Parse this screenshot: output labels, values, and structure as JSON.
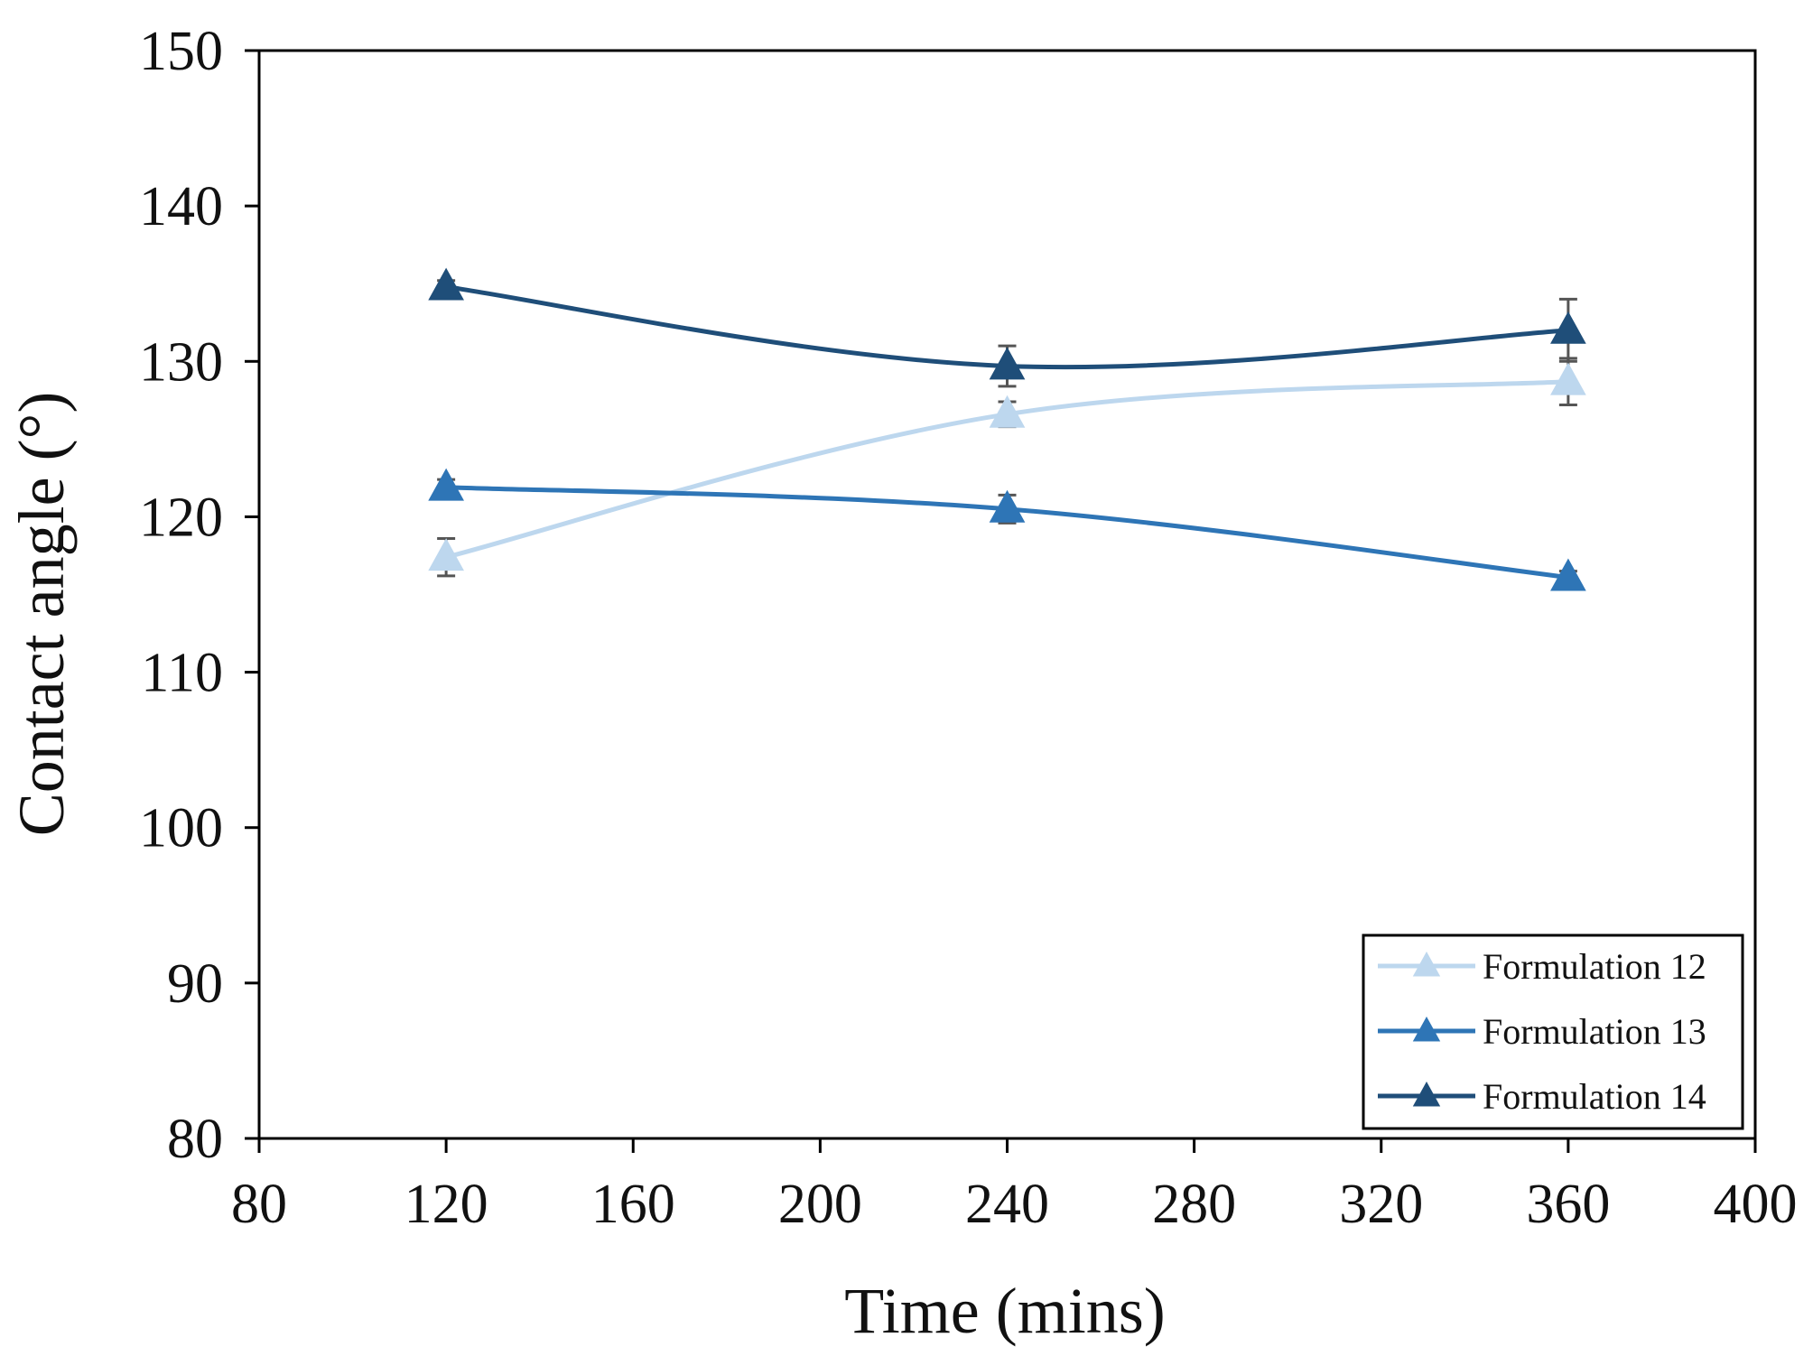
{
  "chart_data": {
    "type": "line",
    "title": "",
    "xlabel": "Time (mins)",
    "ylabel": "Contact angle (°)",
    "xlim": [
      80,
      400
    ],
    "ylim": [
      80,
      150
    ],
    "xticks": [
      80,
      120,
      160,
      200,
      240,
      280,
      320,
      360,
      400
    ],
    "yticks": [
      80,
      90,
      100,
      110,
      120,
      130,
      140,
      150
    ],
    "legend_position": "bottom-right",
    "grid": false,
    "series": [
      {
        "name": "Formulation 12",
        "color": "#bdd7ee",
        "marker": "triangle",
        "x": [
          120,
          240,
          360
        ],
        "y": [
          117.4,
          126.6,
          128.7
        ],
        "error": [
          1.2,
          0.8,
          1.5
        ]
      },
      {
        "name": "Formulation 13",
        "color": "#2e75b6",
        "marker": "triangle",
        "x": [
          120,
          240,
          360
        ],
        "y": [
          121.9,
          120.5,
          116.1
        ],
        "error": [
          0.5,
          0.9,
          0.4
        ]
      },
      {
        "name": "Formulation 14",
        "color": "#1f4e79",
        "marker": "triangle",
        "x": [
          120,
          240,
          360
        ],
        "y": [
          134.8,
          129.7,
          132.0
        ],
        "error": [
          0.4,
          1.3,
          2.0
        ]
      }
    ]
  }
}
